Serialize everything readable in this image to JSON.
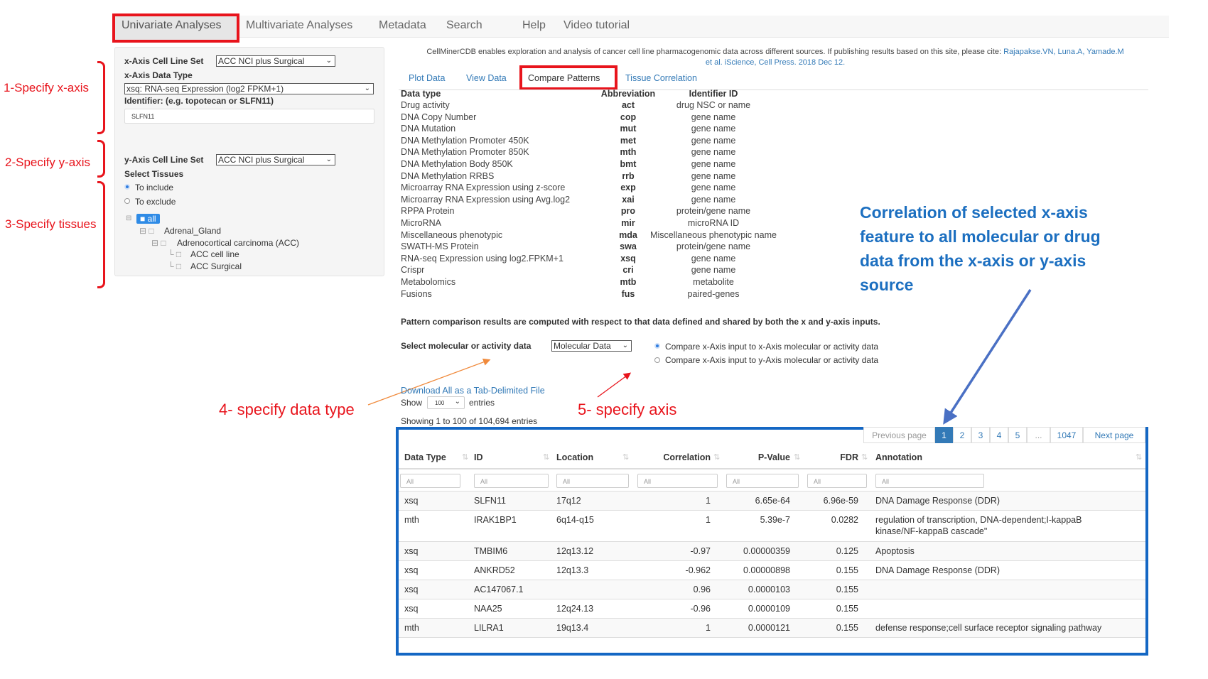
{
  "nav": {
    "items": [
      "Univariate Analyses",
      "Multivariate Analyses",
      "Metadata",
      "Search",
      "Help",
      "Video tutorial"
    ]
  },
  "panel": {
    "x_cell_label": "x-Axis Cell Line Set",
    "x_cell_value": "ACC NCI plus Surgical",
    "x_type_label": "x-Axis Data Type",
    "x_type_value": "xsq: RNA-seq Expression (log2 FPKM+1)",
    "identifier_label": "Identifier: (e.g. topotecan or SLFN11)",
    "identifier_value": "SLFN11",
    "y_cell_label": "y-Axis Cell Line Set",
    "y_cell_value": "ACC NCI plus Surgical",
    "tissues_label": "Select Tissues",
    "include": "To include",
    "exclude": "To exclude",
    "tree": [
      "all",
      "Adrenal_Gland",
      "Adrenocortical carcinoma (ACC)",
      "ACC cell line",
      "ACC Surgical"
    ]
  },
  "annotations": {
    "x": "1-Specify x-axis",
    "y": "2-Specify y-axis",
    "tissues": "3-Specify tissues",
    "datatype": "4- specify data type",
    "axis": "5- specify axis",
    "correlation": [
      "Correlation of selected x-axis",
      "feature to all molecular or drug",
      "data from the x-axis or y-axis",
      "source"
    ]
  },
  "intro": {
    "text": "CellMinerCDB enables exploration and analysis of cancer cell line pharmacogenomic data across different sources. If publishing results based on this site, please cite:",
    "cite1": "Rajapakse.VN, Luna.A, Yamade.M",
    "cite2": "et al. iScience, Cell Press. 2018 Dec 12."
  },
  "tabs": [
    "Plot Data",
    "View Data",
    "Compare Patterns",
    "Tissue Correlation"
  ],
  "datatypes": {
    "headers": [
      "Data type",
      "Abbreviation",
      "Identifier ID"
    ],
    "rows": [
      [
        "Drug activity",
        "act",
        "drug NSC or name"
      ],
      [
        "DNA Copy Number",
        "cop",
        "gene name"
      ],
      [
        "DNA Mutation",
        "mut",
        "gene name"
      ],
      [
        "DNA Methylation Promoter 450K",
        "met",
        "gene name"
      ],
      [
        "DNA Methylation Promoter 850K",
        "mth",
        "gene name"
      ],
      [
        "DNA Methylation Body 850K",
        "bmt",
        "gene name"
      ],
      [
        "DNA Methylation RRBS",
        "rrb",
        "gene name"
      ],
      [
        "Microarray RNA Expression using z-score",
        "exp",
        "gene name"
      ],
      [
        "Microarray RNA Expression using Avg.log2",
        "xai",
        "gene name"
      ],
      [
        "RPPA Protein",
        "pro",
        "protein/gene name"
      ],
      [
        "MicroRNA",
        "mir",
        "microRNA ID"
      ],
      [
        "Miscellaneous phenotypic",
        "mda",
        "Miscellaneous phenotypic name"
      ],
      [
        "SWATH-MS Protein",
        "swa",
        "protein/gene name"
      ],
      [
        "RNA-seq Expression using log2.FPKM+1",
        "xsq",
        "gene name"
      ],
      [
        "Crispr",
        "cri",
        "gene name"
      ],
      [
        "Metabolomics",
        "mtb",
        "metabolite"
      ],
      [
        "Fusions",
        "fus",
        "paired-genes"
      ]
    ]
  },
  "pattern_note": "Pattern comparison results are computed with respect to that data defined and shared by both the x and y-axis inputs.",
  "select_label": "Select molecular or activity data",
  "select_value": "Molecular Data",
  "radio1": "Compare x-Axis input to x-Axis molecular or activity data",
  "radio2": "Compare x-Axis input to y-Axis molecular or activity data",
  "download": "Download All as a Tab-Delimited File",
  "show": "Show",
  "show_value": "100",
  "entries": "entries",
  "showing": "Showing 1 to 100 of 104,694 entries",
  "pagination": [
    "Previous page",
    "1",
    "2",
    "3",
    "4",
    "5",
    "...",
    "1047",
    "Next page"
  ],
  "results": {
    "headers": [
      "Data Type",
      "ID",
      "Location",
      "Correlation",
      "P-Value",
      "FDR",
      "Annotation"
    ],
    "filter_placeholder": "All",
    "rows": [
      [
        "xsq",
        "SLFN11",
        "17q12",
        "1",
        "6.65e-64",
        "6.96e-59",
        "DNA Damage Response (DDR)",
        ""
      ],
      [
        "mth",
        "IRAK1BP1",
        "6q14-q15",
        "1",
        "5.39e-7",
        "0.0282",
        "regulation of transcription, DNA-dependent;I-kappaB",
        "kinase/NF-kappaB cascade\""
      ],
      [
        "xsq",
        "TMBIM6",
        "12q13.12",
        "-0.97",
        "0.00000359",
        "0.125",
        "Apoptosis",
        ""
      ],
      [
        "xsq",
        "ANKRD52",
        "12q13.3",
        "-0.962",
        "0.00000898",
        "0.155",
        "DNA Damage Response (DDR)",
        ""
      ],
      [
        "xsq",
        "AC147067.1",
        "",
        "0.96",
        "0.0000103",
        "0.155",
        "",
        ""
      ],
      [
        "xsq",
        "NAA25",
        "12q24.13",
        "-0.96",
        "0.0000109",
        "0.155",
        "",
        ""
      ],
      [
        "mth",
        "LILRA1",
        "19q13.4",
        "1",
        "0.0000121",
        "0.155",
        "defense response;cell surface receptor signaling pathway",
        ""
      ]
    ]
  },
  "colors": {
    "highlight_red": "#e8141c",
    "annotation_blue": "#1467c4",
    "link": "#337ab7",
    "orange_arrow": "#f08a3c"
  }
}
